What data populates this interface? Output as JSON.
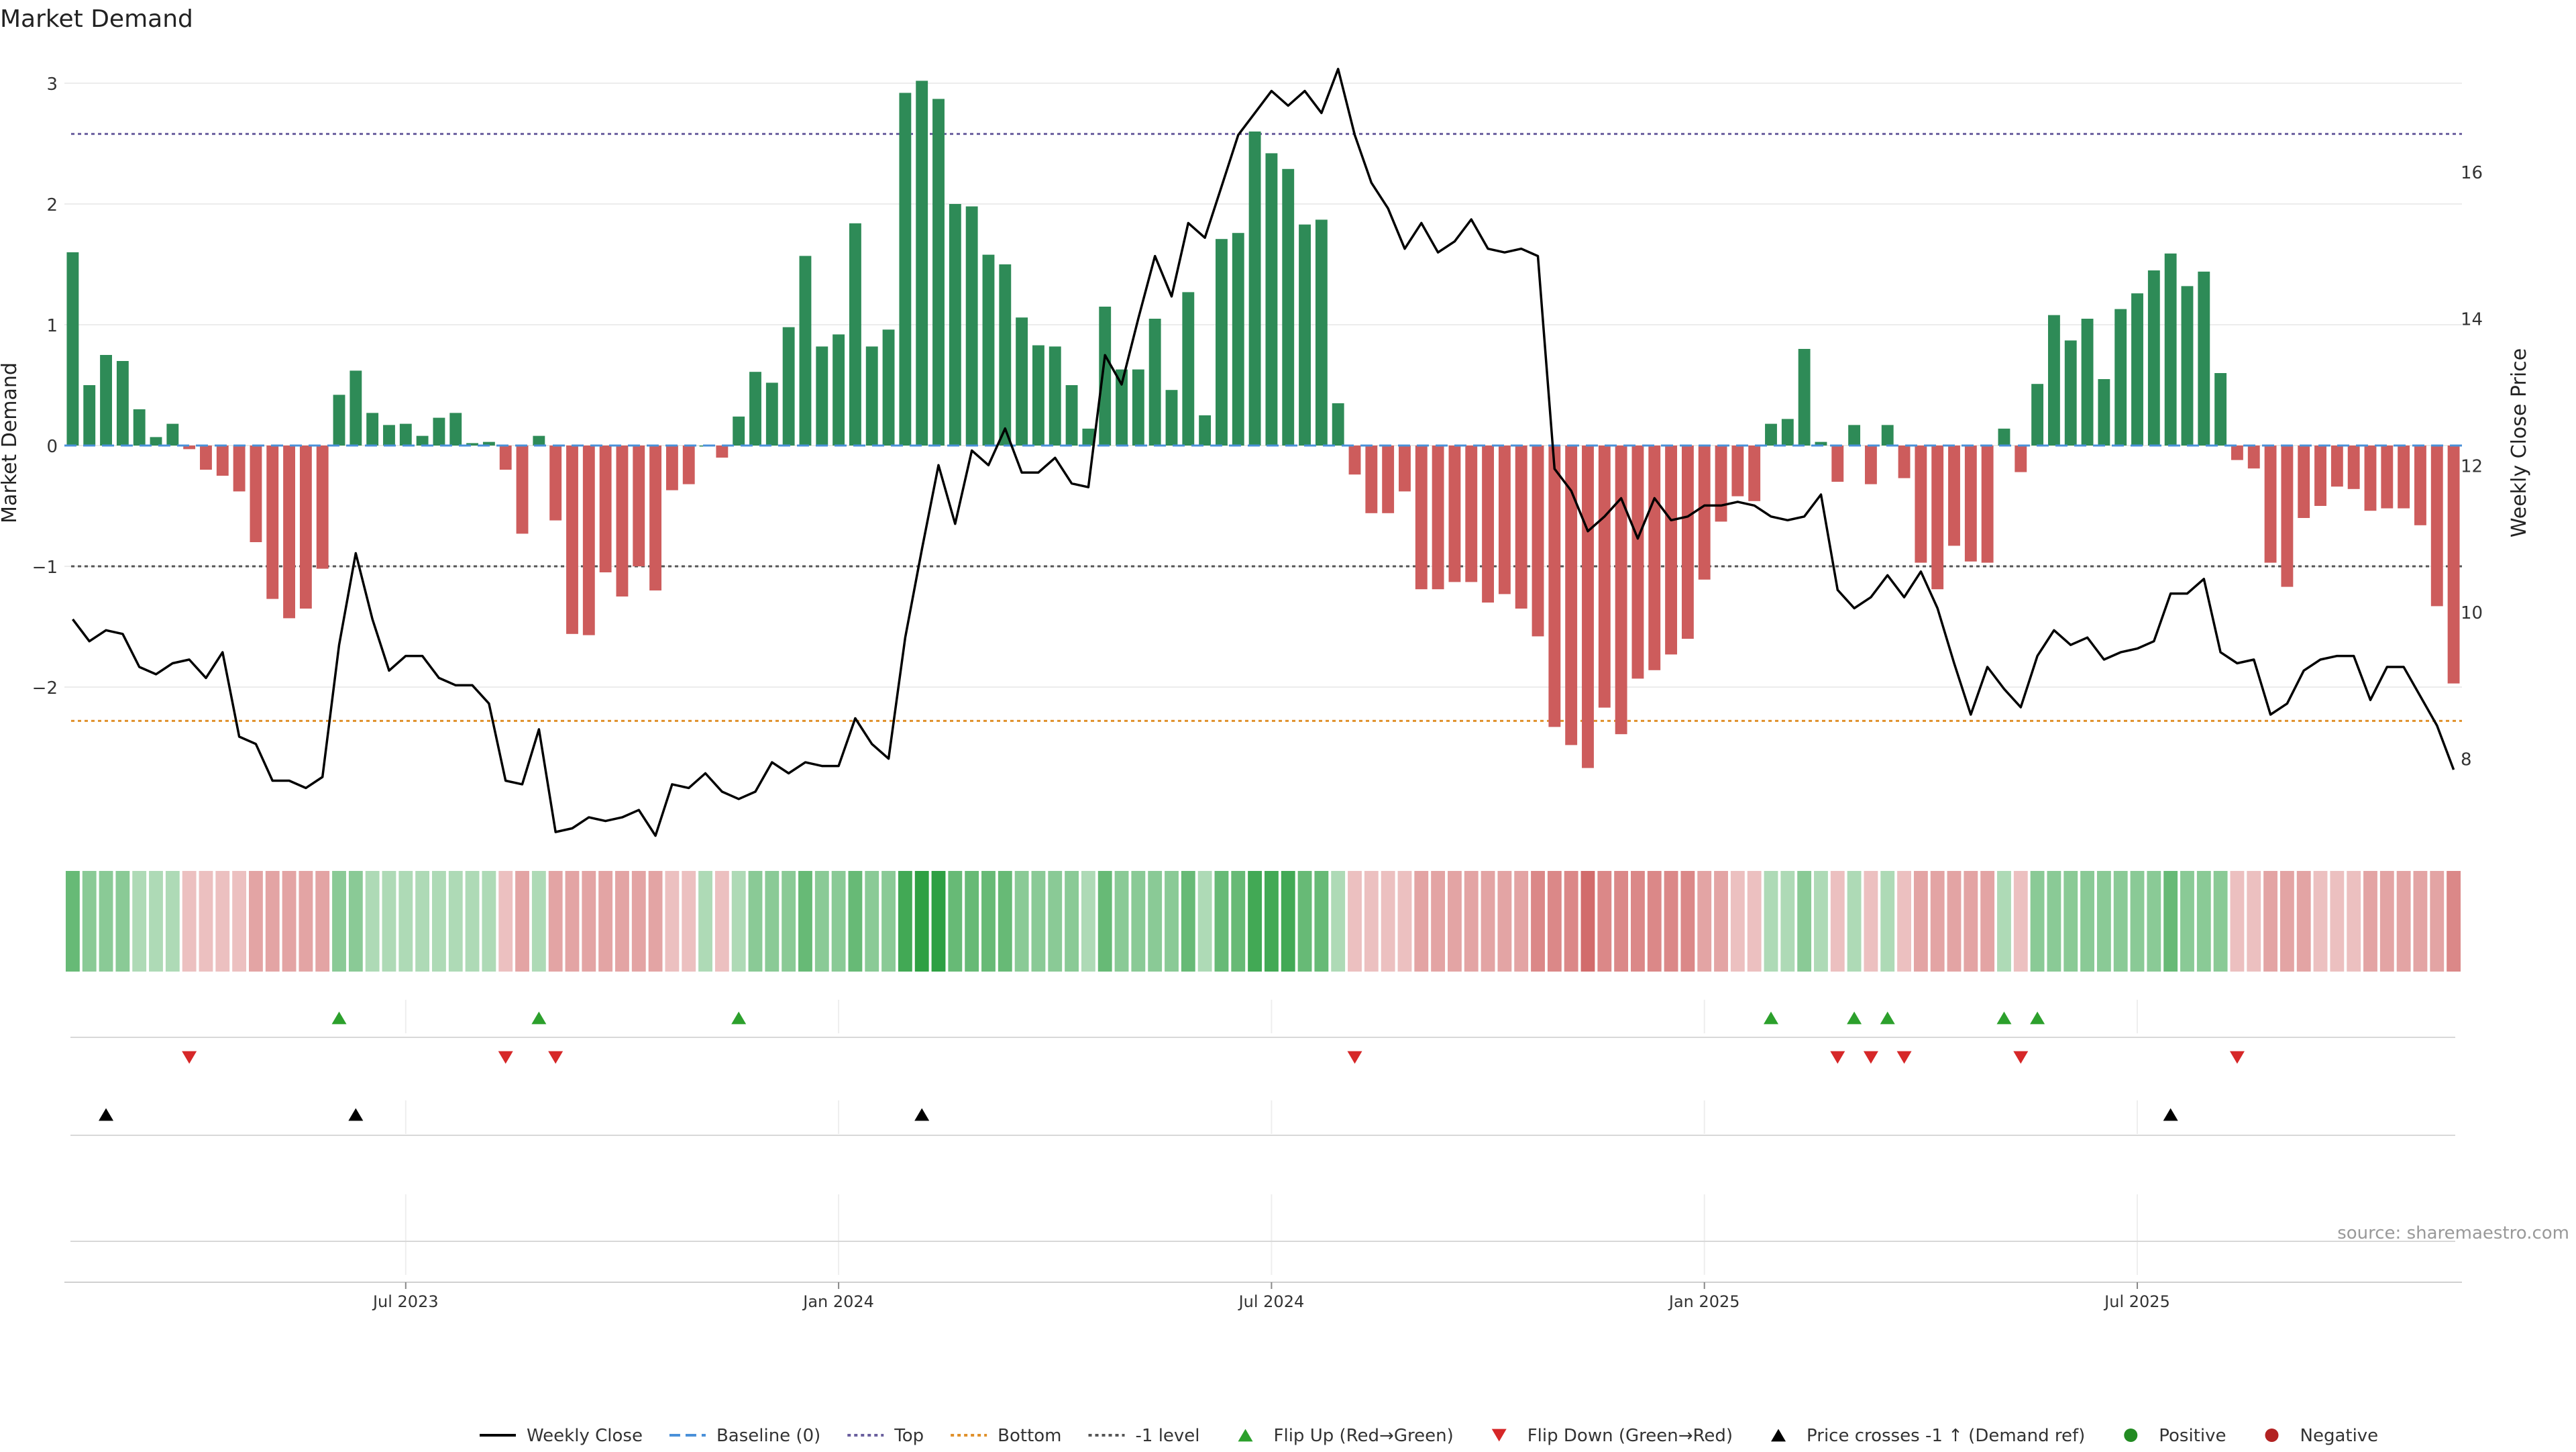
{
  "title": "Market Demand",
  "source": "source: sharemaestro.com",
  "chart_data": {
    "type": "bar",
    "title": "Market Demand",
    "ylabel": "Market Demand",
    "y2label": "Weekly Close Price",
    "ylim": [
      -3.2,
      3.3
    ],
    "y2lim": [
      7.0,
      17.7
    ],
    "yticks": [
      3,
      2,
      1,
      0,
      -1,
      -2
    ],
    "ytick_labels": [
      "3",
      "2",
      "1",
      "0",
      "−1",
      "−2"
    ],
    "y2ticks": [
      16,
      14,
      12,
      10,
      8
    ],
    "y2tick_labels": [
      "16",
      "14",
      "12",
      "10",
      "8"
    ],
    "xticks": [
      20,
      46,
      72,
      98,
      124
    ],
    "xtick_labels": [
      "Jul 2023",
      "Jan 2024",
      "Jul 2024",
      "Jan 2025",
      "Jul 2025"
    ],
    "reference_lines": {
      "top": 2.58,
      "bottom": -2.28,
      "minus_one": -1.0,
      "baseline": 0
    },
    "colors": {
      "positive": "#2e8b57",
      "negative": "#cd5c5c",
      "price": "#000000",
      "top_line": "#6a5f9e",
      "bottom_line": "#e0902a",
      "minus_one_line": "#555555",
      "baseline": "#4a90d9",
      "flip_up": "#2ca02c",
      "flip_down": "#d62728",
      "cross": "#000000",
      "positive_dot": "#228b22",
      "negative_dot": "#b22222"
    },
    "series": [
      {
        "name": "Market Demand",
        "values": [
          1.6,
          0.5,
          0.75,
          0.7,
          0.3,
          0.07,
          0.18,
          -0.03,
          -0.2,
          -0.25,
          -0.38,
          -0.8,
          -1.27,
          -1.43,
          -1.35,
          -1.02,
          0.42,
          0.62,
          0.27,
          0.17,
          0.18,
          0.08,
          0.23,
          0.27,
          0.02,
          0.03,
          -0.2,
          -0.73,
          0.08,
          -0.62,
          -1.56,
          -1.57,
          -1.05,
          -1.25,
          -1.0,
          -1.2,
          -0.37,
          -0.32,
          0.0,
          -0.1,
          0.24,
          0.61,
          0.52,
          0.98,
          1.57,
          0.82,
          0.92,
          1.84,
          0.82,
          0.96,
          2.92,
          3.02,
          2.87,
          2.0,
          1.98,
          1.58,
          1.5,
          1.06,
          0.83,
          0.82,
          0.5,
          0.14,
          1.15,
          0.63,
          0.63,
          1.05,
          0.46,
          1.27,
          0.25,
          1.71,
          1.76,
          2.6,
          2.42,
          2.29,
          1.83,
          1.87,
          0.35,
          -0.24,
          -0.56,
          -0.56,
          -0.38,
          -1.19,
          -1.19,
          -1.13,
          -1.13,
          -1.3,
          -1.23,
          -1.35,
          -1.58,
          -2.33,
          -2.48,
          -2.67,
          -2.17,
          -2.39,
          -1.93,
          -1.86,
          -1.73,
          -1.6,
          -1.11,
          -0.63,
          -0.42,
          -0.46,
          0.18,
          0.22,
          0.8,
          0.03,
          -0.3,
          0.17,
          -0.32,
          0.17,
          -0.27,
          -0.97,
          -1.19,
          -0.83,
          -0.96,
          -0.97,
          0.14,
          -0.22,
          0.51,
          1.08,
          0.87,
          1.05,
          0.55,
          1.13,
          1.26,
          1.45,
          1.59,
          1.32,
          1.44,
          0.6,
          -0.12,
          -0.19,
          -0.97,
          -1.17,
          -0.6,
          -0.5,
          -0.34,
          -0.36,
          -0.54,
          -0.52,
          -0.52,
          -0.66,
          -1.33,
          -1.97
        ]
      },
      {
        "name": "Weekly Close",
        "axis": "right",
        "values": [
          9.9,
          9.6,
          9.75,
          9.7,
          9.25,
          9.15,
          9.3,
          9.35,
          9.1,
          9.45,
          8.3,
          8.2,
          7.7,
          7.7,
          7.6,
          7.75,
          9.55,
          10.8,
          9.9,
          9.2,
          9.4,
          9.4,
          9.1,
          9.0,
          9.0,
          8.75,
          7.7,
          7.65,
          8.4,
          7.0,
          7.05,
          7.2,
          7.15,
          7.2,
          7.3,
          6.95,
          7.65,
          7.6,
          7.8,
          7.55,
          7.45,
          7.55,
          7.95,
          7.8,
          7.95,
          7.9,
          7.9,
          8.55,
          8.2,
          8.0,
          9.65,
          10.85,
          12.0,
          11.2,
          12.2,
          12.0,
          12.5,
          11.9,
          11.9,
          12.1,
          11.75,
          11.7,
          13.5,
          13.1,
          14.0,
          14.85,
          14.3,
          15.3,
          15.1,
          15.8,
          16.5,
          16.8,
          17.1,
          16.9,
          17.1,
          16.8,
          17.4,
          16.5,
          15.85,
          15.5,
          14.95,
          15.3,
          14.9,
          15.05,
          15.35,
          14.95,
          14.9,
          14.95,
          14.85,
          11.95,
          11.65,
          11.1,
          11.3,
          11.55,
          11.0,
          11.55,
          11.25,
          11.3,
          11.45,
          11.45,
          11.5,
          11.45,
          11.3,
          11.25,
          11.3,
          11.6,
          10.3,
          10.05,
          10.2,
          10.5,
          10.2,
          10.55,
          10.05,
          9.3,
          8.6,
          9.25,
          8.95,
          8.7,
          9.4,
          9.75,
          9.55,
          9.65,
          9.35,
          9.45,
          9.5,
          9.6,
          10.25,
          10.25,
          10.45,
          9.45,
          9.3,
          9.35,
          8.6,
          8.75,
          9.2,
          9.35,
          9.4,
          9.4,
          8.8,
          9.25,
          9.25,
          8.85,
          8.45,
          7.85
        ]
      }
    ],
    "heat_levels": [
      3,
      2,
      2,
      2,
      1,
      1,
      1,
      -1,
      -1,
      -1,
      -1,
      -2,
      -2,
      -2,
      -2,
      -2,
      2,
      2,
      1,
      1,
      1,
      1,
      1,
      1,
      1,
      1,
      -1,
      -2,
      1,
      -2,
      -2,
      -2,
      -2,
      -2,
      -2,
      -2,
      -1,
      -1,
      1,
      -1,
      1,
      2,
      2,
      2,
      3,
      2,
      2,
      3,
      2,
      2,
      4,
      5,
      5,
      3,
      3,
      3,
      3,
      2,
      2,
      2,
      2,
      1,
      3,
      2,
      2,
      2,
      2,
      3,
      1,
      3,
      3,
      4,
      4,
      4,
      3,
      3,
      1,
      -1,
      -1,
      -1,
      -1,
      -2,
      -2,
      -2,
      -2,
      -2,
      -2,
      -2,
      -3,
      -3,
      -3,
      -4,
      -3,
      -3,
      -3,
      -3,
      -3,
      -3,
      -2,
      -2,
      -1,
      -1,
      1,
      1,
      2,
      1,
      -1,
      1,
      -1,
      1,
      -1,
      -2,
      -2,
      -2,
      -2,
      -2,
      1,
      -1,
      2,
      2,
      2,
      2,
      2,
      2,
      2,
      2,
      3,
      2,
      2,
      2,
      -1,
      -1,
      -2,
      -2,
      -2,
      -1,
      -1,
      -1,
      -2,
      -2,
      -2,
      -2,
      -2,
      -3
    ],
    "flip_up_indices": [
      16,
      28,
      40,
      102,
      107,
      109,
      116,
      118
    ],
    "flip_down_indices": [
      7,
      26,
      29,
      77,
      106,
      108,
      110,
      117,
      130
    ],
    "price_cross_indices": [
      2,
      17,
      51,
      126
    ],
    "legend": [
      {
        "label": "Weekly Close",
        "kind": "line"
      },
      {
        "label": "Baseline (0)",
        "kind": "dash-blue"
      },
      {
        "label": "Top",
        "kind": "dot-purple"
      },
      {
        "label": "Bottom",
        "kind": "dot-orange"
      },
      {
        "label": "-1 level",
        "kind": "dot-gray"
      },
      {
        "label": "Flip Up (Red→Green)",
        "kind": "tri-up-green"
      },
      {
        "label": "Flip Down (Green→Red)",
        "kind": "tri-down-red"
      },
      {
        "label": "Price crosses -1 ↑ (Demand ref)",
        "kind": "tri-up-black"
      },
      {
        "label": "Positive",
        "kind": "dot-green"
      },
      {
        "label": "Negative",
        "kind": "dot-red"
      }
    ]
  }
}
